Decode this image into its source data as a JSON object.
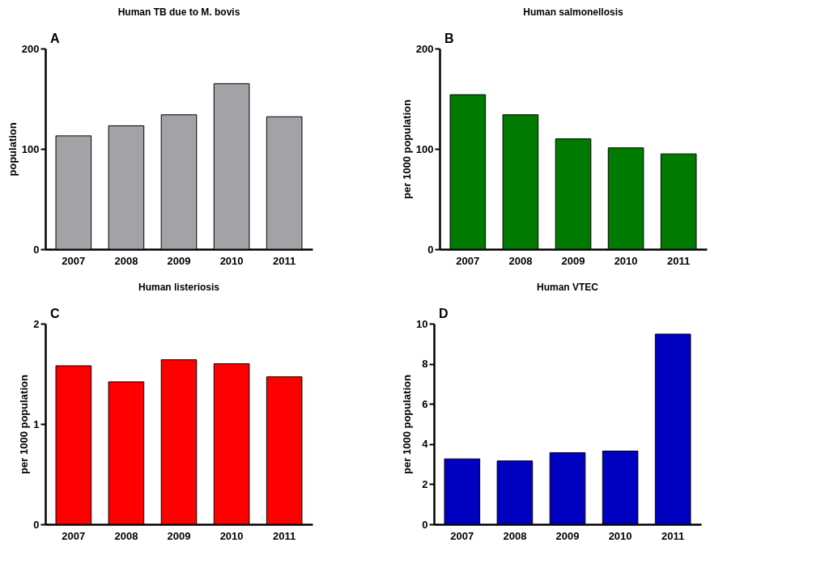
{
  "chart_data": [
    {
      "type": "bar",
      "title": "Human TB due to M. bovis",
      "ylabel": "population",
      "categories": [
        "2007",
        "2008",
        "2009",
        "2010",
        "2011"
      ],
      "values": [
        113,
        123,
        134,
        165,
        132
      ],
      "color": "#a3a2a7",
      "ylim": [
        0,
        200
      ],
      "yticks": [
        0,
        100,
        200
      ],
      "annotations": [
        "A"
      ]
    },
    {
      "type": "bar",
      "title": "Human salmonellosis",
      "ylabel": "per 1000 population",
      "categories": [
        "2007",
        "2008",
        "2009",
        "2010",
        "2011"
      ],
      "values": [
        154,
        134,
        110,
        101,
        95
      ],
      "color": "#007a00",
      "ylim": [
        0,
        200
      ],
      "yticks": [
        0,
        100,
        200
      ],
      "annotations": [
        "B"
      ]
    },
    {
      "type": "bar",
      "title": "Human listeriosis",
      "ylabel": "per 1000 population",
      "categories": [
        "2007",
        "2008",
        "2009",
        "2010",
        "2011"
      ],
      "values": [
        1.58,
        1.42,
        1.64,
        1.6,
        1.47
      ],
      "color": "#ff0000",
      "ylim": [
        0,
        2
      ],
      "yticks": [
        0,
        1,
        2
      ],
      "annotations": [
        "C"
      ]
    },
    {
      "type": "bar",
      "title": "Human VTEC",
      "ylabel": "per 1000 population",
      "categories": [
        "2007",
        "2008",
        "2009",
        "2010",
        "2011"
      ],
      "values": [
        3.26,
        3.16,
        3.57,
        3.65,
        9.48
      ],
      "color": "#0000c0",
      "ylim": [
        0,
        10
      ],
      "yticks": [
        0,
        2,
        4,
        6,
        8,
        10
      ],
      "annotations": [
        "D"
      ]
    }
  ]
}
